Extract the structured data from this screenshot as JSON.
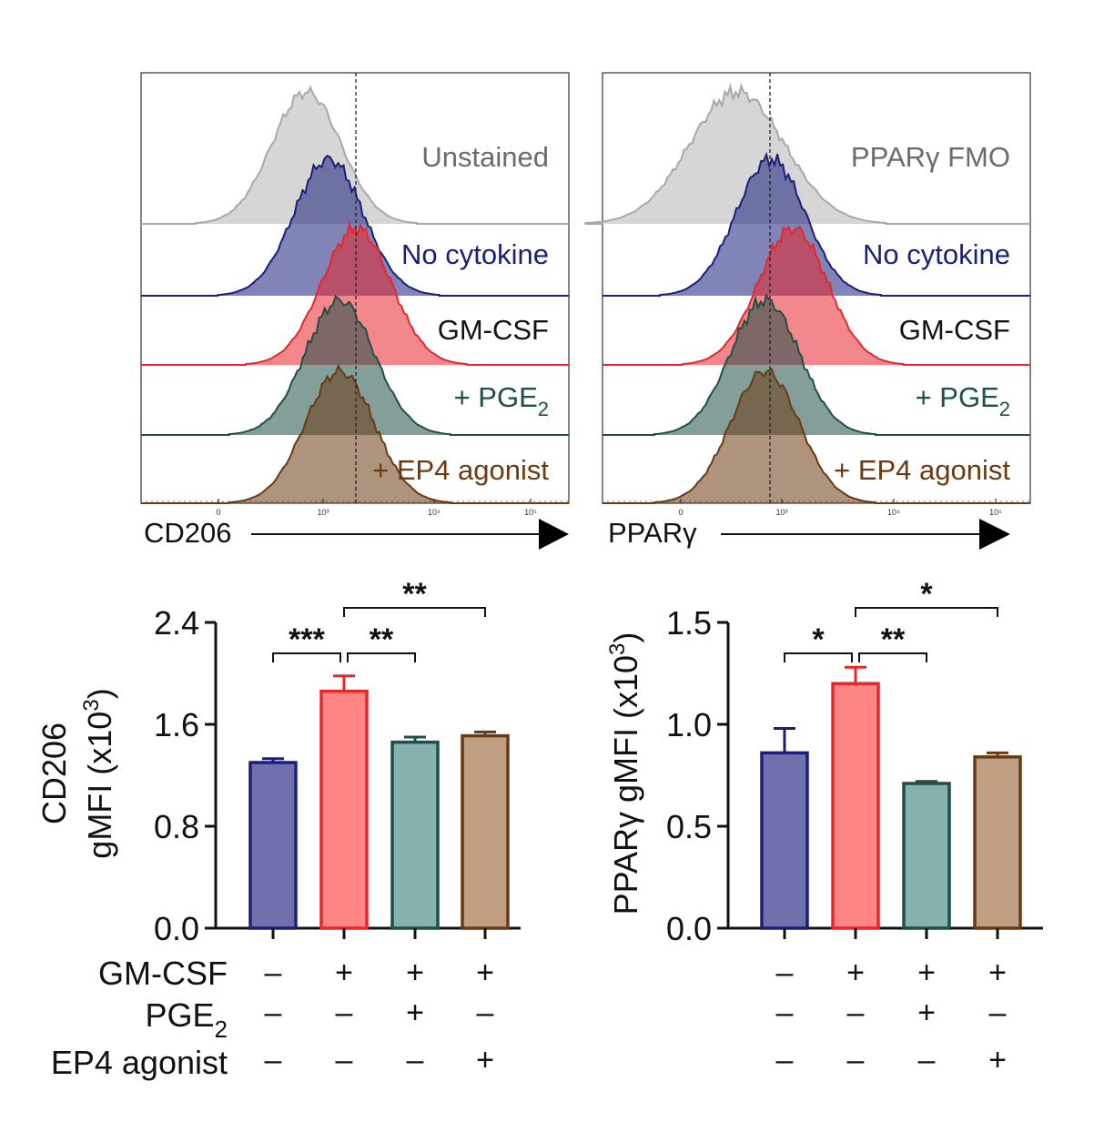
{
  "colors": {
    "unstained": "#c8c8c8",
    "no_cytokine": "#1a1f7a",
    "gmcsf": "#e8262b",
    "pge2": "#1f4f47",
    "ep4": "#6b3a12",
    "label_gray": "#6b6b6b"
  },
  "histograms": [
    {
      "axis_label": "CD206",
      "tick_labels": [
        "0",
        "10³",
        "10⁴",
        "10⁵"
      ],
      "series": [
        {
          "label": "Unstained",
          "peak_log": 2.85
        },
        {
          "label": "No cytokine",
          "peak_log": 3.05
        },
        {
          "label": "GM-CSF",
          "peak_log": 3.3
        },
        {
          "label": "+ PGE",
          "subscript": "2",
          "peak_log": 3.15
        },
        {
          "label": "+ EP4 agonist",
          "peak_log": 3.15
        }
      ]
    },
    {
      "axis_label": "PPARγ",
      "tick_labels": [
        "0",
        "10³",
        "10⁴",
        "10⁵"
      ],
      "series": [
        {
          "label": "PPARγ FMO",
          "peak_log": 2.6
        },
        {
          "label": "No cytokine",
          "peak_log": 2.9
        },
        {
          "label": "GM-CSF",
          "peak_log": 3.1
        },
        {
          "label": "+ PGE",
          "subscript": "2",
          "peak_log": 2.85
        },
        {
          "label": "+ EP4 agonist",
          "peak_log": 2.85
        }
      ]
    }
  ],
  "chart_data": [
    {
      "type": "bar",
      "ylabel_line1": "CD206",
      "ylabel_line2": "gMFI (x10",
      "ylabel_sup": "3",
      "ylabel_close": ")",
      "ylim": [
        0,
        2.4
      ],
      "yticks": [
        "0.0",
        "0.8",
        "1.6",
        "2.4"
      ],
      "categories": [
        "No cytokine",
        "GM-CSF",
        "+ PGE2",
        "+ EP4 agonist"
      ],
      "values": [
        1.3,
        1.86,
        1.46,
        1.51
      ],
      "errors": [
        0.03,
        0.12,
        0.04,
        0.03
      ],
      "significance": [
        {
          "from": 0,
          "to": 1,
          "label": "***"
        },
        {
          "from": 1,
          "to": 2,
          "label": "**"
        },
        {
          "from": 1,
          "to": 3,
          "label": "**"
        }
      ]
    },
    {
      "type": "bar",
      "ylabel_line1": "PPARγ gMFI (x10",
      "ylabel_sup": "3",
      "ylabel_close": ")",
      "ylim": [
        0,
        1.5
      ],
      "yticks": [
        "0.0",
        "0.5",
        "1.0",
        "1.5"
      ],
      "categories": [
        "No cytokine",
        "GM-CSF",
        "+ PGE2",
        "+ EP4 agonist"
      ],
      "values": [
        0.86,
        1.2,
        0.71,
        0.84
      ],
      "errors": [
        0.12,
        0.08,
        0.01,
        0.02
      ],
      "significance": [
        {
          "from": 0,
          "to": 1,
          "label": "*"
        },
        {
          "from": 1,
          "to": 2,
          "label": "**"
        },
        {
          "from": 1,
          "to": 3,
          "label": "*"
        }
      ]
    }
  ],
  "conditions": {
    "row_labels": {
      "gmcsf": "GM-CSF",
      "pge": "PGE",
      "pge_sub": "2",
      "ep4": "EP4 agonist"
    },
    "plus": "+",
    "minus": "–",
    "gmcsf": [
      "–",
      "+",
      "+",
      "+"
    ],
    "pge2": [
      "–",
      "–",
      "+",
      "–"
    ],
    "ep4": [
      "–",
      "–",
      "–",
      "+"
    ]
  }
}
